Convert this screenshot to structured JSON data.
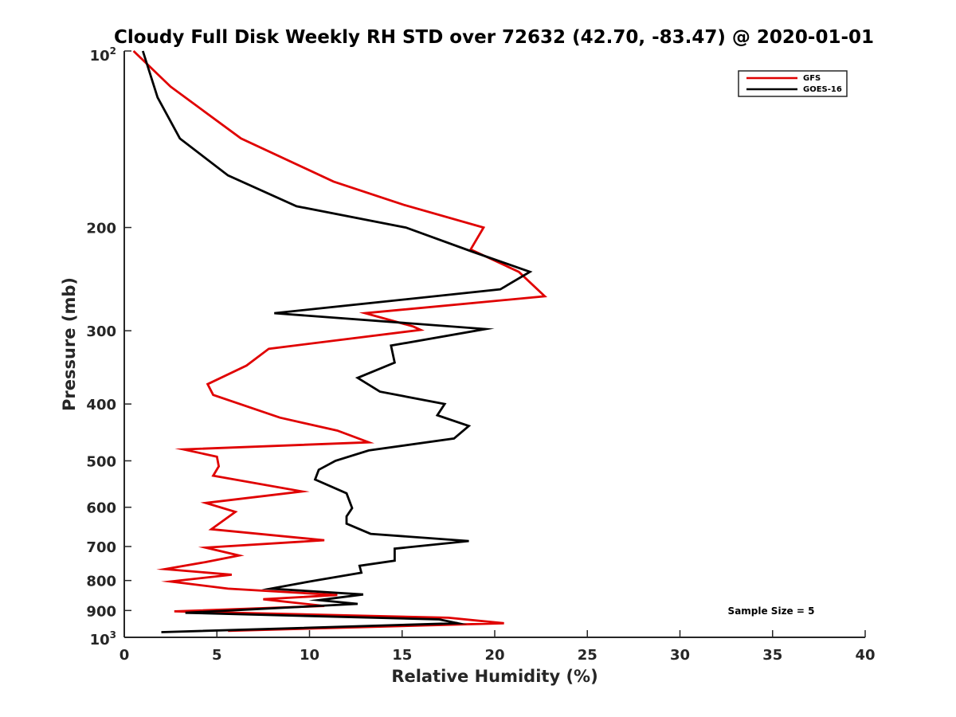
{
  "chart_data": {
    "type": "line",
    "title": "Cloudy Full Disk Weekly RH STD over 72632 (42.70, -83.47) @ 2020-01-01",
    "xlabel": "Relative Humidity (%)",
    "ylabel": "Pressure (mb)",
    "xlim": [
      0,
      40
    ],
    "ylim": [
      100,
      1000
    ],
    "y_scale": "log",
    "y_reversed": true,
    "grid": false,
    "legend_position": "top-right",
    "xticks": [
      0,
      5,
      10,
      15,
      20,
      25,
      30,
      35,
      40
    ],
    "xtick_labels": [
      "0",
      "5",
      "10",
      "15",
      "20",
      "25",
      "30",
      "35",
      "40"
    ],
    "yticks": [
      200,
      300,
      400,
      500,
      600,
      700,
      800,
      900
    ],
    "ytick_labels": [
      "200",
      "300",
      "400",
      "500",
      "600",
      "700",
      "800",
      "900"
    ],
    "ytick_power_base": "10",
    "ytick_power_top": "2",
    "ytick_power_bottom": "3",
    "annotation": "Sample Size = 5",
    "series": [
      {
        "name": "GFS",
        "color": "#e00000",
        "points": [
          [
            0.5,
            100
          ],
          [
            2.5,
            115
          ],
          [
            6.3,
            141
          ],
          [
            11.3,
            167
          ],
          [
            15.1,
            183
          ],
          [
            19.4,
            200
          ],
          [
            18.7,
            218
          ],
          [
            21.3,
            238
          ],
          [
            22.7,
            262
          ],
          [
            13.0,
            280
          ],
          [
            15.6,
            295
          ],
          [
            16.0,
            299
          ],
          [
            7.8,
            322
          ],
          [
            6.6,
            344
          ],
          [
            4.5,
            370
          ],
          [
            4.8,
            386
          ],
          [
            8.4,
            422
          ],
          [
            11.5,
            444
          ],
          [
            13.2,
            465
          ],
          [
            3.2,
            478
          ],
          [
            5.0,
            492
          ],
          [
            5.1,
            511
          ],
          [
            4.8,
            530
          ],
          [
            9.6,
            564
          ],
          [
            4.4,
            590
          ],
          [
            6.0,
            611
          ],
          [
            4.7,
            654
          ],
          [
            10.8,
            683
          ],
          [
            4.4,
            703
          ],
          [
            6.2,
            725
          ],
          [
            4.4,
            744
          ],
          [
            2.2,
            765
          ],
          [
            5.8,
            782
          ],
          [
            2.5,
            803
          ],
          [
            5.6,
            826
          ],
          [
            11.5,
            847
          ],
          [
            7.5,
            861
          ],
          [
            10.8,
            884
          ],
          [
            2.7,
            903
          ],
          [
            17.5,
            926
          ],
          [
            20.5,
            946
          ],
          [
            5.6,
            975
          ]
        ]
      },
      {
        "name": "GOES-16",
        "color": "#000000",
        "points": [
          [
            1.0,
            100
          ],
          [
            1.8,
            120
          ],
          [
            3.0,
            141
          ],
          [
            5.6,
            163
          ],
          [
            9.3,
            184
          ],
          [
            15.2,
            200
          ],
          [
            18.8,
            220
          ],
          [
            21.9,
            238
          ],
          [
            20.3,
            255
          ],
          [
            8.1,
            280
          ],
          [
            19.5,
            298
          ],
          [
            14.4,
            318
          ],
          [
            14.6,
            340
          ],
          [
            12.6,
            361
          ],
          [
            13.8,
            381
          ],
          [
            17.3,
            400
          ],
          [
            16.9,
            418
          ],
          [
            18.6,
            436
          ],
          [
            17.8,
            458
          ],
          [
            13.2,
            480
          ],
          [
            11.4,
            500
          ],
          [
            10.5,
            518
          ],
          [
            10.3,
            538
          ],
          [
            12.0,
            568
          ],
          [
            12.3,
            602
          ],
          [
            12.0,
            622
          ],
          [
            12.0,
            640
          ],
          [
            13.3,
            666
          ],
          [
            18.6,
            685
          ],
          [
            14.6,
            706
          ],
          [
            14.6,
            740
          ],
          [
            12.7,
            755
          ],
          [
            12.8,
            776
          ],
          [
            10.3,
            800
          ],
          [
            7.9,
            826
          ],
          [
            12.9,
            845
          ],
          [
            10.5,
            864
          ],
          [
            12.6,
            877
          ],
          [
            3.3,
            908
          ],
          [
            17.0,
            932
          ],
          [
            18.0,
            946
          ],
          [
            2.0,
            980
          ]
        ]
      }
    ]
  }
}
